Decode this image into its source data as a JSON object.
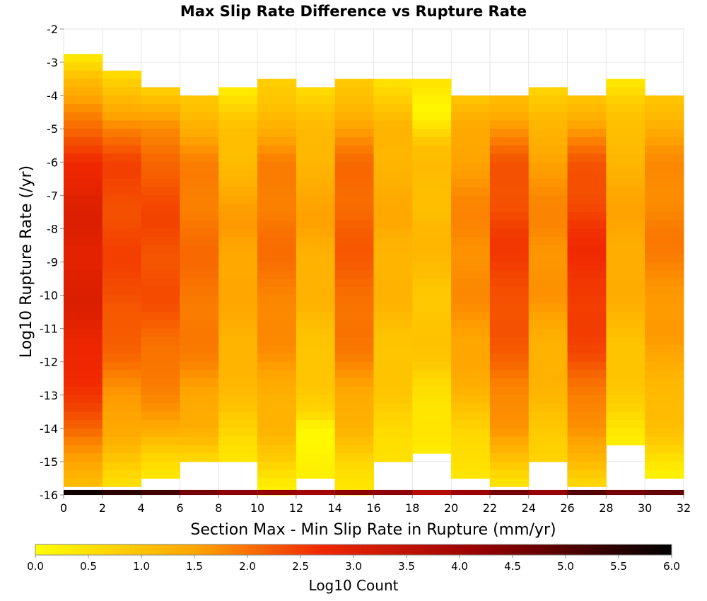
{
  "chart_data": {
    "type": "heatmap",
    "title": "Max Slip Rate Difference vs Rupture Rate",
    "xlabel": "Section Max - Min Slip Rate in Rupture (mm/yr)",
    "ylabel": "Log10 Rupture Rate (/yr)",
    "xlim": [
      0,
      32
    ],
    "ylim": [
      -16,
      -2
    ],
    "x_ticks": [
      "0",
      "2",
      "4",
      "6",
      "8",
      "10",
      "12",
      "14",
      "16",
      "18",
      "20",
      "22",
      "24",
      "26",
      "28",
      "30",
      "32"
    ],
    "y_ticks": [
      "-2",
      "-3",
      "-4",
      "-5",
      "-6",
      "-7",
      "-8",
      "-9",
      "-10",
      "-11",
      "-12",
      "-13",
      "-14",
      "-15",
      "-16"
    ],
    "x_bin_width": 2,
    "y_bin_height": 0.25,
    "colorbar": {
      "label": "Log10 Count",
      "range": [
        0,
        6
      ],
      "ticks": [
        "0.0",
        "0.5",
        "1.0",
        "1.5",
        "2.0",
        "2.5",
        "3.0",
        "3.5",
        "4.0",
        "4.5",
        "5.0",
        "5.5",
        "6.0"
      ]
    },
    "grid": true,
    "columns": [
      {
        "x_start": 0,
        "y_top": -2.75,
        "y_bottom": -15.75,
        "profile": [
          [
            -2.75,
            0.3
          ],
          [
            -3.5,
            1.2
          ],
          [
            -5,
            2.0
          ],
          [
            -6,
            2.8
          ],
          [
            -8,
            3.0
          ],
          [
            -10,
            3.0
          ],
          [
            -12,
            2.8
          ],
          [
            -14,
            2.2
          ],
          [
            -15,
            1.5
          ],
          [
            -15.75,
            1.0
          ]
        ],
        "bottom_row": 5.8
      },
      {
        "x_start": 2,
        "y_top": -3.25,
        "y_bottom": -15.75,
        "profile": [
          [
            -3.25,
            0.4
          ],
          [
            -4,
            1.1
          ],
          [
            -5,
            1.9
          ],
          [
            -6,
            2.4
          ],
          [
            -8,
            2.4
          ],
          [
            -10,
            2.4
          ],
          [
            -12,
            2.0
          ],
          [
            -14,
            1.4
          ],
          [
            -15,
            0.9
          ],
          [
            -15.75,
            0.6
          ]
        ],
        "bottom_row": 5.5
      },
      {
        "x_start": 4,
        "y_top": -3.75,
        "y_bottom": -15.5,
        "profile": [
          [
            -3.75,
            0.8
          ],
          [
            -5,
            1.7
          ],
          [
            -6,
            2.2
          ],
          [
            -8,
            2.4
          ],
          [
            -10,
            2.3
          ],
          [
            -12,
            2.0
          ],
          [
            -14,
            1.5
          ],
          [
            -15,
            0.6
          ],
          [
            -15.5,
            0.3
          ]
        ],
        "bottom_row": 5.2
      },
      {
        "x_start": 6,
        "y_top": -4.0,
        "y_bottom": -15.0,
        "profile": [
          [
            -4,
            0.9
          ],
          [
            -5,
            1.4
          ],
          [
            -6,
            1.8
          ],
          [
            -8,
            2.0
          ],
          [
            -10,
            2.0
          ],
          [
            -12,
            1.8
          ],
          [
            -14,
            1.3
          ],
          [
            -15,
            0.6
          ]
        ],
        "bottom_row": 4.6
      },
      {
        "x_start": 8,
        "y_top": -3.75,
        "y_bottom": -15.0,
        "profile": [
          [
            -3.75,
            0.3
          ],
          [
            -5,
            1.0
          ],
          [
            -6,
            1.2
          ],
          [
            -8,
            1.6
          ],
          [
            -10,
            1.4
          ],
          [
            -12,
            1.3
          ],
          [
            -14,
            0.8
          ],
          [
            -15,
            0.4
          ]
        ],
        "bottom_row": 4.3
      },
      {
        "x_start": 10,
        "y_top": -3.5,
        "y_bottom": -16.0,
        "profile": [
          [
            -3.5,
            0.7
          ],
          [
            -5,
            1.4
          ],
          [
            -6,
            1.8
          ],
          [
            -8,
            2.0
          ],
          [
            -10,
            1.9
          ],
          [
            -12,
            1.6
          ],
          [
            -14,
            1.2
          ],
          [
            -15,
            0.8
          ],
          [
            -16,
            0.2
          ]
        ],
        "bottom_row": 4.2
      },
      {
        "x_start": 12,
        "y_top": -3.75,
        "y_bottom": -15.5,
        "profile": [
          [
            -3.75,
            0.6
          ],
          [
            -5,
            1.1
          ],
          [
            -6,
            1.3
          ],
          [
            -8,
            1.5
          ],
          [
            -10,
            1.2
          ],
          [
            -12,
            1.0
          ],
          [
            -13.5,
            0.7
          ],
          [
            -14,
            0.2
          ],
          [
            -15,
            0.2
          ],
          [
            -15.5,
            0.2
          ]
        ],
        "bottom_row": 4.0
      },
      {
        "x_start": 14,
        "y_top": -3.5,
        "y_bottom": -16.0,
        "profile": [
          [
            -3.5,
            0.8
          ],
          [
            -5,
            1.6
          ],
          [
            -6,
            2.0
          ],
          [
            -8,
            2.2
          ],
          [
            -10,
            2.1
          ],
          [
            -12,
            1.8
          ],
          [
            -14,
            1.2
          ],
          [
            -15,
            0.7
          ],
          [
            -16,
            0.4
          ]
        ],
        "bottom_row": 4.3
      },
      {
        "x_start": 16,
        "y_top": -3.5,
        "y_bottom": -15.0,
        "profile": [
          [
            -3.5,
            0.5
          ],
          [
            -5,
            1.2
          ],
          [
            -6,
            1.3
          ],
          [
            -8,
            1.4
          ],
          [
            -10,
            1.2
          ],
          [
            -12,
            1.0
          ],
          [
            -14,
            0.7
          ],
          [
            -15,
            0.5
          ]
        ],
        "bottom_row": 4.3
      },
      {
        "x_start": 18,
        "y_top": -3.5,
        "y_bottom": -14.75,
        "profile": [
          [
            -3.5,
            0.4
          ],
          [
            -4.5,
            0.2
          ],
          [
            -5.5,
            1.0
          ],
          [
            -8,
            1.2
          ],
          [
            -10,
            1.0
          ],
          [
            -12,
            0.9
          ],
          [
            -13.5,
            0.4
          ],
          [
            -14.75,
            0.3
          ]
        ],
        "bottom_row": 3.7
      },
      {
        "x_start": 20,
        "y_top": -4.0,
        "y_bottom": -15.5,
        "profile": [
          [
            -4,
            0.9
          ],
          [
            -5,
            1.4
          ],
          [
            -6,
            1.6
          ],
          [
            -8,
            1.8
          ],
          [
            -10,
            1.7
          ],
          [
            -12,
            1.5
          ],
          [
            -14,
            0.8
          ],
          [
            -15,
            0.5
          ],
          [
            -15.5,
            0.3
          ]
        ],
        "bottom_row": 4.1
      },
      {
        "x_start": 22,
        "y_top": -4.0,
        "y_bottom": -15.75,
        "profile": [
          [
            -4,
            1.1
          ],
          [
            -5,
            1.7
          ],
          [
            -6,
            2.2
          ],
          [
            -8,
            2.5
          ],
          [
            -10,
            2.4
          ],
          [
            -12,
            2.1
          ],
          [
            -14,
            1.6
          ],
          [
            -15,
            1.0
          ],
          [
            -15.75,
            0.5
          ]
        ],
        "bottom_row": 4.6
      },
      {
        "x_start": 24,
        "y_top": -3.75,
        "y_bottom": -15.0,
        "profile": [
          [
            -3.75,
            0.7
          ],
          [
            -5,
            1.2
          ],
          [
            -6,
            1.6
          ],
          [
            -8,
            1.8
          ],
          [
            -10,
            1.6
          ],
          [
            -12,
            1.3
          ],
          [
            -14,
            1.0
          ],
          [
            -15,
            0.7
          ]
        ],
        "bottom_row": 4.2
      },
      {
        "x_start": 26,
        "y_top": -4.0,
        "y_bottom": -15.75,
        "profile": [
          [
            -4,
            1.0
          ],
          [
            -5,
            1.6
          ],
          [
            -6,
            2.2
          ],
          [
            -8,
            2.6
          ],
          [
            -10,
            2.6
          ],
          [
            -12,
            2.3
          ],
          [
            -14,
            1.6
          ],
          [
            -15,
            1.2
          ],
          [
            -15.75,
            0.7
          ]
        ],
        "bottom_row": 5.0
      },
      {
        "x_start": 28,
        "y_top": -3.5,
        "y_bottom": -14.5,
        "profile": [
          [
            -3.5,
            0.4
          ],
          [
            -4.5,
            0.9
          ],
          [
            -6,
            1.3
          ],
          [
            -8,
            1.5
          ],
          [
            -10,
            1.3
          ],
          [
            -12,
            1.0
          ],
          [
            -13.5,
            0.7
          ],
          [
            -14.5,
            0.3
          ]
        ],
        "bottom_row": 4.6
      },
      {
        "x_start": 30,
        "y_top": -4.0,
        "y_bottom": -15.5,
        "profile": [
          [
            -4,
            1.0
          ],
          [
            -5,
            1.4
          ],
          [
            -6,
            1.7
          ],
          [
            -8,
            1.9
          ],
          [
            -10,
            1.7
          ],
          [
            -12,
            1.4
          ],
          [
            -14,
            1.0
          ],
          [
            -15,
            0.5
          ],
          [
            -15.5,
            0.3
          ]
        ],
        "bottom_row": 4.8
      }
    ]
  }
}
